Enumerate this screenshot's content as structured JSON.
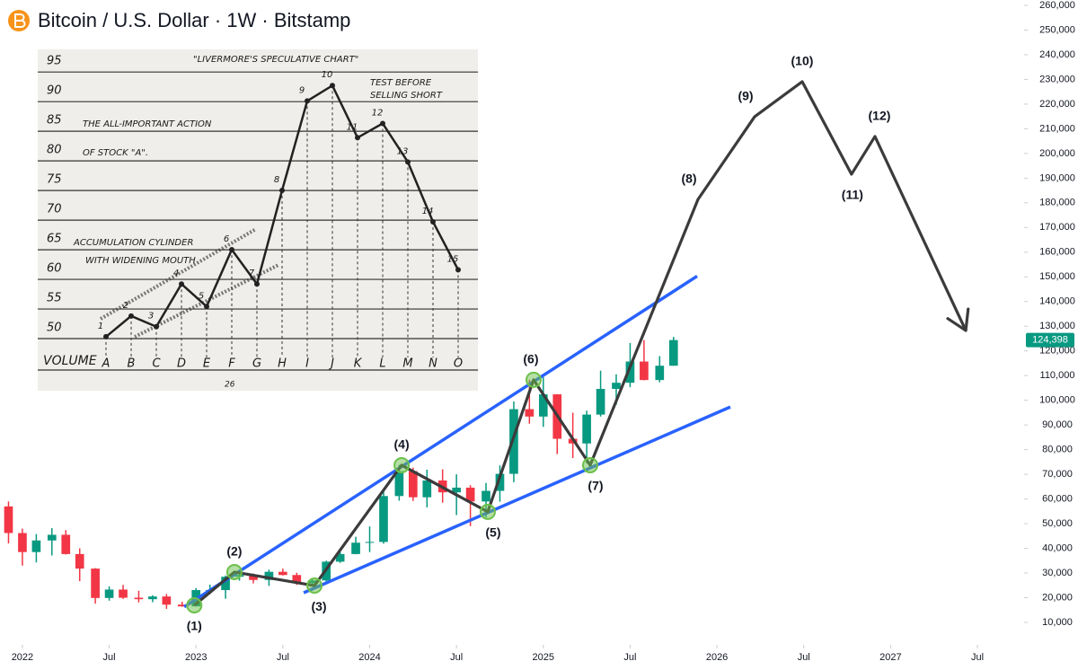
{
  "chart_data": [
    {
      "type": "candlestick",
      "title": "Bitcoin / U.S. Dollar · 1W · Bitstamp",
      "x": [
        2021.92,
        2022.0,
        2022.08,
        2022.17,
        2022.25,
        2022.33,
        2022.42,
        2022.5,
        2022.58,
        2022.67,
        2022.75,
        2022.83,
        2022.92,
        2023.0,
        2023.08,
        2023.17,
        2023.25,
        2023.33,
        2023.42,
        2023.5,
        2023.58,
        2023.67,
        2023.75,
        2023.83,
        2023.92,
        2024.0,
        2024.08,
        2024.17,
        2024.25,
        2024.33,
        2024.42,
        2024.5,
        2024.58,
        2024.67,
        2024.75,
        2024.83,
        2024.92,
        2025.0,
        2025.08,
        2025.17,
        2025.25,
        2025.33,
        2025.42,
        2025.5,
        2025.58,
        2025.67,
        2025.75
      ],
      "open": [
        57000,
        46200,
        38500,
        43200,
        45500,
        37700,
        31800,
        19900,
        23300,
        20000,
        19400,
        20500,
        17200,
        16500,
        23100,
        23100,
        28500,
        29200,
        27200,
        30500,
        29200,
        25900,
        27000,
        34600,
        37700,
        42300,
        42600,
        61200,
        71300,
        60700,
        67500,
        62700,
        64600,
        59000,
        63300,
        70200,
        96400,
        93400,
        102400,
        84400,
        82500,
        94200,
        104600,
        107100,
        115700,
        108200,
        114000
      ],
      "high": [
        59000,
        48000,
        45800,
        48200,
        47400,
        40000,
        32000,
        24600,
        25200,
        22800,
        21000,
        21500,
        18400,
        23900,
        25300,
        29000,
        31000,
        29800,
        31400,
        31800,
        30100,
        27500,
        35000,
        38400,
        44700,
        48900,
        63900,
        73800,
        72700,
        71900,
        72000,
        70000,
        65600,
        66500,
        73600,
        99500,
        108300,
        109400,
        102500,
        95000,
        95800,
        112000,
        110500,
        123200,
        124400,
        117900,
        125700
      ],
      "low": [
        42000,
        33000,
        34300,
        37100,
        37500,
        26700,
        17600,
        18800,
        19500,
        18100,
        18200,
        15500,
        16300,
        16500,
        21400,
        19600,
        26900,
        25800,
        24800,
        29000,
        25200,
        24900,
        26600,
        34100,
        37600,
        38500,
        41900,
        59300,
        59200,
        56600,
        58500,
        53500,
        49000,
        52500,
        58900,
        66800,
        90500,
        89200,
        78200,
        76600,
        74400,
        93400,
        98200,
        105300,
        108100,
        107300,
        114000
      ],
      "close": [
        46200,
        38500,
        43200,
        45500,
        37700,
        31800,
        19900,
        23300,
        20000,
        19400,
        20500,
        17200,
        16500,
        23100,
        23100,
        28500,
        29200,
        27200,
        30500,
        29200,
        25900,
        27000,
        34600,
        37700,
        42300,
        42600,
        61200,
        71300,
        60700,
        67500,
        62700,
        64600,
        59000,
        63300,
        70200,
        96400,
        93400,
        102400,
        84400,
        82500,
        94200,
        104600,
        107100,
        115700,
        108200,
        114000,
        124398
      ],
      "up_color": "#089981",
      "down_color": "#f23645",
      "xlim": [
        2021.871,
        2027.769
      ],
      "xticks": [
        {
          "value": 2022,
          "label": "2022"
        },
        {
          "value": 2022.5,
          "label": "Jul"
        },
        {
          "value": 2023,
          "label": "2023"
        },
        {
          "value": 2023.5,
          "label": "Jul"
        },
        {
          "value": 2024,
          "label": "2024"
        },
        {
          "value": 2024.5,
          "label": "Jul"
        },
        {
          "value": 2025,
          "label": "2025"
        },
        {
          "value": 2025.5,
          "label": "Jul"
        },
        {
          "value": 2026,
          "label": "2026"
        },
        {
          "value": 2026.5,
          "label": "Jul"
        },
        {
          "value": 2027,
          "label": "2027"
        },
        {
          "value": 2027.5,
          "label": "Jul"
        }
      ],
      "ylim": [
        10000,
        260000
      ],
      "yticks": [
        {
          "value": 260000,
          "label": "260,000"
        },
        {
          "value": 250000,
          "label": "250,000"
        },
        {
          "value": 240000,
          "label": "240,000"
        },
        {
          "value": 230000,
          "label": "230,000"
        },
        {
          "value": 220000,
          "label": "220,000"
        },
        {
          "value": 210000,
          "label": "210,000"
        },
        {
          "value": 200000,
          "label": "200,000"
        },
        {
          "value": 190000,
          "label": "190,000"
        },
        {
          "value": 180000,
          "label": "180,000"
        },
        {
          "value": 170000,
          "label": "170,000"
        },
        {
          "value": 160000,
          "label": "160,000"
        },
        {
          "value": 150000,
          "label": "150,000"
        },
        {
          "value": 140000,
          "label": "140,000"
        },
        {
          "value": 130000,
          "label": "130,000"
        },
        {
          "value": 120000,
          "label": "120,000"
        },
        {
          "value": 110000,
          "label": "110,000"
        },
        {
          "value": 100000,
          "label": "100,000"
        },
        {
          "value": 90000,
          "label": "90,000"
        },
        {
          "value": 80000,
          "label": "80,000"
        },
        {
          "value": 70000,
          "label": "70,000"
        },
        {
          "value": 60000,
          "label": "60,000"
        },
        {
          "value": 50000,
          "label": "50,000"
        },
        {
          "value": 40000,
          "label": "40,000"
        },
        {
          "value": 30000,
          "label": "30,000"
        },
        {
          "value": 20000,
          "label": "20,000"
        },
        {
          "value": 10000,
          "label": "10,000"
        }
      ],
      "last_price": {
        "value": 124398,
        "label": "124,398"
      },
      "wedge": {
        "color": "#2962ff",
        "lines": [
          {
            "x": [
              2022.932,
              2025.886
            ],
            "values": [
              16300,
              150300
            ]
          },
          {
            "x": [
              2023.62,
              2026.077
            ],
            "values": [
              22000,
              97300
            ]
          }
        ]
      },
      "path": {
        "color": "#3b3b3b",
        "highlight_color": "#6cc04a",
        "x": [
          2022.99,
          2023.221,
          2023.682,
          2024.184,
          2024.68,
          2024.944,
          2025.27,
          2025.891,
          2026.217,
          2026.491,
          2026.775,
          2026.91,
          2027.433
        ],
        "values": [
          16900,
          30400,
          24900,
          73700,
          54800,
          108300,
          73700,
          181400,
          214900,
          229100,
          191600,
          206900,
          128300
        ],
        "labels": [
          "(1)",
          "(2)",
          "(3)",
          "(4)",
          "(5)",
          "(6)",
          "(7)",
          "(8)",
          "(9)",
          "(10)",
          "(11)",
          "(12)",
          null
        ]
      }
    },
    {
      "type": "line",
      "title": "\"LIVERMORE'S SPECULATIVE CHART\"",
      "categories": [
        "A",
        "B",
        "C",
        "D",
        "E",
        "F",
        "G",
        "H",
        "I",
        "J",
        "K",
        "L",
        "M",
        "N",
        "O"
      ],
      "values": [
        48.5,
        52,
        50.2,
        57.4,
        53.6,
        63.2,
        57.4,
        73.2,
        88.3,
        90.9,
        82.1,
        84.5,
        78,
        67.9,
        59.8
      ],
      "point_labels": [
        "1",
        "2",
        "3",
        "4",
        "5",
        "6",
        "7",
        "8",
        "9",
        "10",
        "11",
        "12",
        "13",
        "14",
        "15"
      ],
      "ylim": [
        40,
        97
      ],
      "yticks": [
        95,
        90,
        85,
        80,
        75,
        70,
        65,
        60,
        55,
        50
      ],
      "x_label": "VOLUME",
      "annotations": [
        "THE ALL-IMPORTANT ACTION",
        "OF STOCK \"A\".",
        "ACCUMULATION CYLINDER",
        "WITH WIDENING MOUTH",
        "TEST BEFORE",
        "SELLING SHORT"
      ],
      "page_number": "26"
    }
  ]
}
